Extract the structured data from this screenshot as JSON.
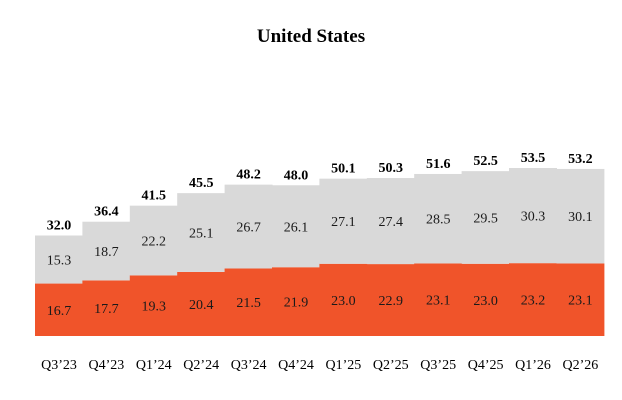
{
  "chart_data": {
    "type": "bar",
    "stacked": true,
    "title": "United States",
    "categories": [
      "Q3’23",
      "Q4’23",
      "Q1’24",
      "Q2’24",
      "Q3’24",
      "Q4’24",
      "Q1’25",
      "Q2’25",
      "Q3’25",
      "Q4’25",
      "Q1’26",
      "Q2’26"
    ],
    "series": [
      {
        "color": "#f0542a",
        "values": [
          16.7,
          17.7,
          19.3,
          20.4,
          21.5,
          21.9,
          23.0,
          22.9,
          23.1,
          23.0,
          23.2,
          23.1
        ]
      },
      {
        "color": "#d9d9d9",
        "values": [
          15.3,
          18.7,
          22.2,
          25.1,
          26.7,
          26.1,
          27.1,
          27.4,
          28.5,
          29.5,
          30.3,
          30.1
        ]
      }
    ],
    "totals": [
      32.0,
      36.4,
      41.5,
      45.5,
      48.2,
      48.0,
      50.1,
      50.3,
      51.6,
      52.5,
      53.5,
      53.2
    ],
    "ylim": [
      0,
      53.5
    ],
    "grid": false,
    "legend": "none",
    "xlabel": "",
    "ylabel": ""
  }
}
